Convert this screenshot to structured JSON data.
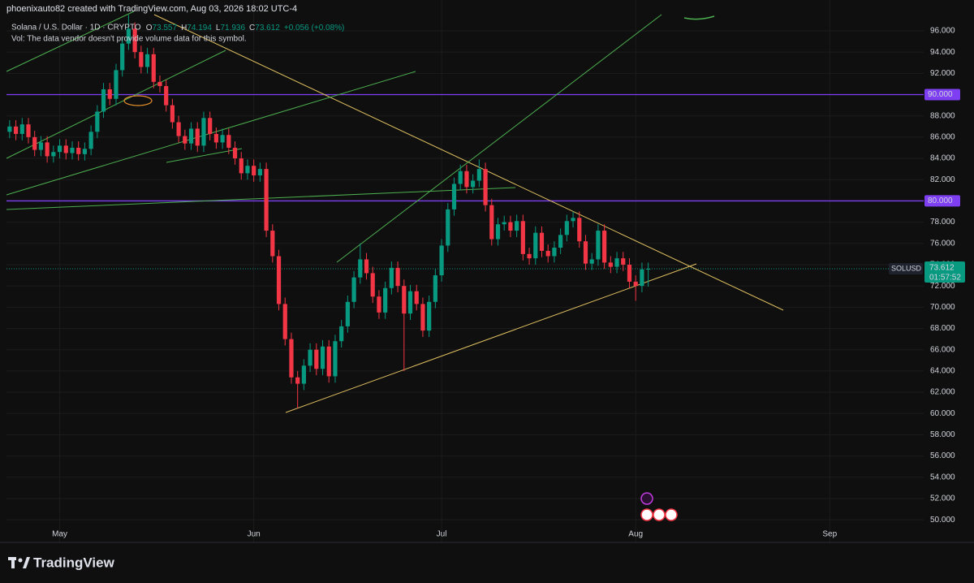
{
  "header": {
    "byline": "phoenixauto82 created with TradingView.com, Aug 03, 2026 18:02 UTC-4",
    "symbol": "Solana / U.S. Dollar · 1D · CRYPTO",
    "ohlc_keys": [
      "O",
      "H",
      "L",
      "C"
    ],
    "change": "+0.056 (+0.08%)",
    "volume_note": "Vol: The data vendor doesn't provide volume data for this symbol."
  },
  "price_tag": {
    "ticker": "SOLUSD",
    "countdown": "01:57:52"
  },
  "footer": {
    "brand": "TradingView"
  },
  "chart_data": {
    "type": "candlestick",
    "up_color": "#089981",
    "down_color": "#f23645",
    "open": [
      86.5,
      87.0,
      86.3,
      87.2,
      86.0,
      84.8,
      85.5,
      84.2,
      84.6,
      85.2,
      84.5,
      85.0,
      84.4,
      84.9,
      86.5,
      88.4,
      90.5,
      89.6,
      92.3,
      94.8,
      96.2,
      94.0,
      92.6,
      93.8,
      91.2,
      90.8,
      89.0,
      87.4,
      86.1,
      85.4,
      86.8,
      85.2,
      87.8,
      86.3,
      85.5,
      86.2,
      85.0,
      84.0,
      82.6,
      83.3,
      82.4,
      83.0,
      77.2,
      74.8,
      70.3,
      67.0,
      63.4,
      62.8,
      64.5,
      66.0,
      64.2,
      66.3,
      63.5,
      66.8,
      68.2,
      70.5,
      72.8,
      74.5,
      73.2,
      71.0,
      69.5,
      71.8,
      73.7,
      72.0,
      69.4,
      71.5,
      70.3,
      67.8,
      70.5,
      73.0,
      75.8,
      79.2,
      81.6,
      82.8,
      81.3,
      81.9,
      83.0,
      79.6,
      76.4,
      77.8,
      78.0,
      77.2,
      78.1,
      75.0,
      74.6,
      77.0,
      75.3,
      74.8,
      75.6,
      76.8,
      78.1,
      78.4,
      76.2,
      74.1,
      74.5,
      77.2,
      74.2,
      73.8,
      74.6,
      74.0,
      72.4,
      72.0,
      73.557
    ],
    "high": [
      87.6,
      87.6,
      87.8,
      87.8,
      86.6,
      86.1,
      86.1,
      85.2,
      85.8,
      85.8,
      85.6,
      85.6,
      85.5,
      87.1,
      89.0,
      91.1,
      91.1,
      92.9,
      95.4,
      97.5,
      96.8,
      94.6,
      94.4,
      94.4,
      91.8,
      91.4,
      89.6,
      88.0,
      86.7,
      87.4,
      87.4,
      88.4,
      88.4,
      86.9,
      86.8,
      86.8,
      85.6,
      84.6,
      83.9,
      83.9,
      83.6,
      83.6,
      77.8,
      75.4,
      70.9,
      67.6,
      64.0,
      65.1,
      66.6,
      66.6,
      66.9,
      66.9,
      67.4,
      68.8,
      71.1,
      73.4,
      76.0,
      75.1,
      73.8,
      71.6,
      72.4,
      74.3,
      74.3,
      72.6,
      72.1,
      72.1,
      70.9,
      71.1,
      73.6,
      76.4,
      79.8,
      82.2,
      83.4,
      83.4,
      82.5,
      83.9,
      83.6,
      80.2,
      78.4,
      78.6,
      78.6,
      78.7,
      78.7,
      75.6,
      77.6,
      77.6,
      75.9,
      76.2,
      77.4,
      78.7,
      79.0,
      79.0,
      76.8,
      75.1,
      77.8,
      77.8,
      74.8,
      75.2,
      75.2,
      74.6,
      73.0,
      74.2,
      74.194
    ],
    "low": [
      85.9,
      85.7,
      85.7,
      85.4,
      84.2,
      84.2,
      83.6,
      83.6,
      84.0,
      83.9,
      83.9,
      83.8,
      83.8,
      84.3,
      85.9,
      87.8,
      89.0,
      89.0,
      91.7,
      94.2,
      93.4,
      92.0,
      92.0,
      90.6,
      90.2,
      88.4,
      86.8,
      85.5,
      84.8,
      84.8,
      84.6,
      84.6,
      85.7,
      84.9,
      84.9,
      84.4,
      83.4,
      82.0,
      82.0,
      81.8,
      81.8,
      76.6,
      74.2,
      69.7,
      66.4,
      62.8,
      60.5,
      62.2,
      63.9,
      63.6,
      63.6,
      62.9,
      62.9,
      66.2,
      67.6,
      69.9,
      72.2,
      72.6,
      70.4,
      68.9,
      68.9,
      71.2,
      71.4,
      64.0,
      68.8,
      69.7,
      67.2,
      67.2,
      69.9,
      72.4,
      75.2,
      78.6,
      81.0,
      80.7,
      80.7,
      81.3,
      79.0,
      75.8,
      75.8,
      77.2,
      76.6,
      76.6,
      74.4,
      74.0,
      74.0,
      74.7,
      74.2,
      74.2,
      75.0,
      76.2,
      77.5,
      75.6,
      73.5,
      73.5,
      73.9,
      73.6,
      73.2,
      73.2,
      73.4,
      71.8,
      70.6,
      71.4,
      71.936
    ],
    "close": [
      87.0,
      86.3,
      87.2,
      86.0,
      84.8,
      85.5,
      84.2,
      84.6,
      85.2,
      84.5,
      85.0,
      84.4,
      84.9,
      86.5,
      88.4,
      90.5,
      89.6,
      92.3,
      94.8,
      96.2,
      94.0,
      92.6,
      93.8,
      91.2,
      90.8,
      89.0,
      87.4,
      86.1,
      85.4,
      86.8,
      85.2,
      87.8,
      86.3,
      85.5,
      86.2,
      85.0,
      84.0,
      82.6,
      83.3,
      82.4,
      83.0,
      77.2,
      74.8,
      70.3,
      67.0,
      63.4,
      62.8,
      64.5,
      66.0,
      64.2,
      66.3,
      63.5,
      66.8,
      68.2,
      70.5,
      72.8,
      74.5,
      73.2,
      71.0,
      69.5,
      71.8,
      73.7,
      72.0,
      69.4,
      71.5,
      70.3,
      67.8,
      70.5,
      73.0,
      75.8,
      79.2,
      81.6,
      82.8,
      81.3,
      81.9,
      83.0,
      79.6,
      76.4,
      77.8,
      78.0,
      77.2,
      78.1,
      75.0,
      74.6,
      77.0,
      75.3,
      74.8,
      75.6,
      76.8,
      78.1,
      78.4,
      76.2,
      74.1,
      74.5,
      77.2,
      74.2,
      73.8,
      74.6,
      74.0,
      72.4,
      72.0,
      73.557,
      73.612
    ],
    "xlim": [
      -0.5,
      146
    ],
    "xticks": [
      {
        "value": 8,
        "label": "May"
      },
      {
        "value": 39,
        "label": "Jun"
      },
      {
        "value": 69,
        "label": "Jul"
      },
      {
        "value": 100,
        "label": "Aug"
      },
      {
        "value": 131,
        "label": "Sep"
      }
    ],
    "ylim": [
      49.4,
      98.9
    ],
    "yticks": [
      {
        "value": 50,
        "label": "50.000"
      },
      {
        "value": 52,
        "label": "52.000"
      },
      {
        "value": 54,
        "label": "54.000"
      },
      {
        "value": 56,
        "label": "56.000"
      },
      {
        "value": 58,
        "label": "58.000"
      },
      {
        "value": 60,
        "label": "60.000"
      },
      {
        "value": 62,
        "label": "62.000"
      },
      {
        "value": 64,
        "label": "64.000"
      },
      {
        "value": 66,
        "label": "66.000"
      },
      {
        "value": 68,
        "label": "68.000"
      },
      {
        "value": 70,
        "label": "70.000"
      },
      {
        "value": 72,
        "label": "72.000"
      },
      {
        "value": 74,
        "label": "74.000"
      },
      {
        "value": 76,
        "label": "76.000"
      },
      {
        "value": 78,
        "label": "78.000"
      },
      {
        "value": 80,
        "label": "80.000"
      },
      {
        "value": 82,
        "label": "82.000"
      },
      {
        "value": 84,
        "label": "84.000"
      },
      {
        "value": 86,
        "label": "86.000"
      },
      {
        "value": 88,
        "label": "88.000"
      },
      {
        "value": 90,
        "label": "90.000"
      },
      {
        "value": 92,
        "label": "92.000"
      },
      {
        "value": 94,
        "label": "94.000"
      },
      {
        "value": 96,
        "label": "96.000"
      }
    ],
    "levels": [
      {
        "value": 90,
        "label": "90.000",
        "color": "#7e3ff2"
      },
      {
        "value": 80,
        "label": "80.000",
        "color": "#7e3ff2"
      }
    ],
    "grid": true
  }
}
